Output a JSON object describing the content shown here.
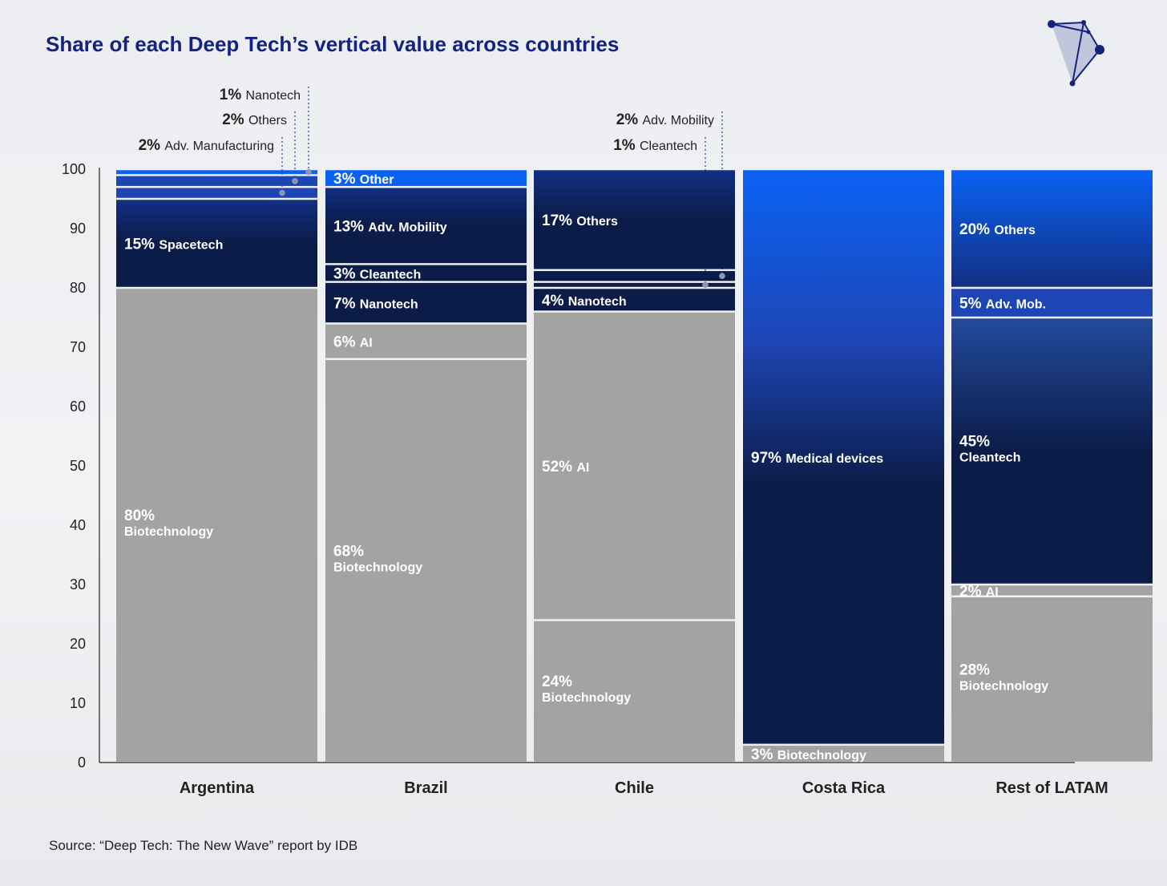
{
  "title": "Share of each Deep Tech’s vertical value across countries",
  "source": "Source: “Deep Tech: The New Wave” report by IDB",
  "logo": {
    "icon": "constellation-logo-icon"
  },
  "colors": {
    "gray": "#a3a3a3",
    "navy": "#0b1c48",
    "blue_bright": "#0a62f5",
    "blue_mid": "#1e45b4",
    "blue_deep": "#122f82",
    "text_dark": "#222222",
    "title": "#142382",
    "leader": "#2c4aa0"
  },
  "chart_data": {
    "type": "stacked-bar",
    "title": "Share of each Deep Tech’s vertical value across countries",
    "ylim": [
      0,
      100
    ],
    "yticks": [
      "0",
      "10",
      "20",
      "30",
      "40",
      "50",
      "60",
      "70",
      "80",
      "90",
      "100"
    ],
    "categories": [
      "Argentina",
      "Brazil",
      "Chile",
      "Costa Rica",
      "Rest of LATAM"
    ],
    "bars": [
      {
        "category": "Argentina",
        "segments": [
          {
            "value": 80,
            "pct": "80%",
            "label": "Biotechnology",
            "style": "gray",
            "layout": "stacked"
          },
          {
            "value": 15,
            "pct": "15%",
            "label": "Spacetech",
            "style": "gradient",
            "layout": "inline"
          },
          {
            "value": 2,
            "pct": "2%",
            "label": "Adv. Manufacturing",
            "style": "blue_mid",
            "layout": "callout",
            "callout_row": 3,
            "dot_x": 352
          },
          {
            "value": 2,
            "pct": "2%",
            "label": "Others",
            "style": "blue_mid",
            "layout": "callout",
            "callout_row": 2,
            "dot_x": 368
          },
          {
            "value": 1,
            "pct": "1%",
            "label": "Nanotech",
            "style": "blue_bright",
            "layout": "callout",
            "callout_row": 1,
            "dot_x": 385
          }
        ]
      },
      {
        "category": "Brazil",
        "segments": [
          {
            "value": 68,
            "pct": "68%",
            "label": "Biotechnology",
            "style": "gray",
            "layout": "stacked"
          },
          {
            "value": 6,
            "pct": "6%",
            "label": "AI",
            "style": "gray",
            "layout": "inline"
          },
          {
            "value": 7,
            "pct": "7%",
            "label": "Nanotech",
            "style": "navy",
            "layout": "inline"
          },
          {
            "value": 3,
            "pct": "3%",
            "label": "Cleantech",
            "style": "navy",
            "layout": "inline"
          },
          {
            "value": 13,
            "pct": "13%",
            "label": "Adv. Mobility",
            "style": "gradient",
            "layout": "inline"
          },
          {
            "value": 3,
            "pct": "3%",
            "label": "Other",
            "style": "blue_bright",
            "layout": "inline"
          }
        ]
      },
      {
        "category": "Chile",
        "segments": [
          {
            "value": 24,
            "pct": "24%",
            "label": "Biotechnology",
            "style": "gray",
            "layout": "stacked"
          },
          {
            "value": 52,
            "pct": "52%",
            "label": "AI",
            "style": "gray",
            "layout": "inline"
          },
          {
            "value": 4,
            "pct": "4%",
            "label": "Nanotech",
            "style": "navy",
            "layout": "inline"
          },
          {
            "value": 1,
            "pct": "1%",
            "label": "Cleantech",
            "style": "navy",
            "layout": "callout",
            "callout_row": 3,
            "dot_x": 880
          },
          {
            "value": 2,
            "pct": "2%",
            "label": "Adv. Mobility",
            "style": "navy",
            "layout": "callout",
            "callout_row": 2,
            "dot_x": 901
          },
          {
            "value": 17,
            "pct": "17%",
            "label": "Others",
            "style": "gradient",
            "layout": "inline"
          }
        ]
      },
      {
        "category": "Costa Rica",
        "segments": [
          {
            "value": 3,
            "pct": "3%",
            "label": "Biotechnology",
            "style": "gray",
            "layout": "inline"
          },
          {
            "value": 97,
            "pct": "97%",
            "label": "Medical devices",
            "style": "gradient_tall",
            "layout": "inline"
          }
        ]
      },
      {
        "category": "Rest of LATAM",
        "segments": [
          {
            "value": 28,
            "pct": "28%",
            "label": "Biotechnology",
            "style": "gray",
            "layout": "stacked"
          },
          {
            "value": 2,
            "pct": "2%",
            "label": "AI",
            "style": "gray",
            "layout": "inline"
          },
          {
            "value": 45,
            "pct": "45%",
            "label": "Cleantech",
            "style": "gradient_rev",
            "layout": "stacked"
          },
          {
            "value": 5,
            "pct": "5%",
            "label": "Adv. Mob.",
            "style": "blue_mid",
            "layout": "inline"
          },
          {
            "value": 20,
            "pct": "20%",
            "label": "Others",
            "style": "gradient_top",
            "layout": "inline"
          }
        ]
      }
    ]
  }
}
